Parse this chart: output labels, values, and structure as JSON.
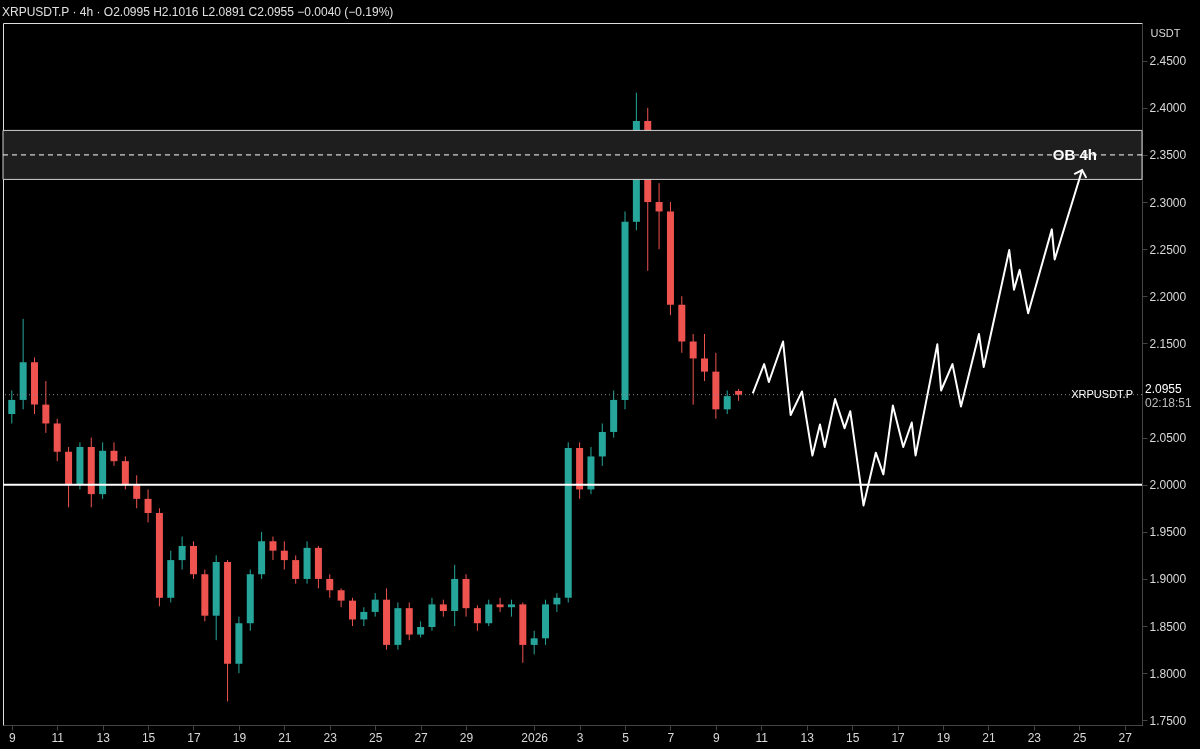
{
  "chart_data": {
    "type": "candlestick",
    "title": "XRPUSDT.P · 4h · O2.0995 H2.1016 L2.0891 C2.0955 −0.0040 (−0.19%)",
    "ylabel": "USDT",
    "x": [
      "2025-12-09T00:00",
      "2025-12-09T12:00",
      "2025-12-10T00:00",
      "2025-12-10T12:00",
      "2025-12-11T00:00",
      "2025-12-11T12:00",
      "2025-12-12T00:00",
      "2025-12-12T12:00",
      "2025-12-13T00:00",
      "2025-12-13T12:00",
      "2025-12-14T00:00",
      "2025-12-14T12:00",
      "2025-12-15T00:00",
      "2025-12-15T12:00",
      "2025-12-16T00:00",
      "2025-12-16T12:00",
      "2025-12-17T00:00",
      "2025-12-17T12:00",
      "2025-12-18T00:00",
      "2025-12-18T12:00",
      "2025-12-19T00:00",
      "2025-12-19T12:00",
      "2025-12-20T00:00",
      "2025-12-20T12:00",
      "2025-12-21T00:00",
      "2025-12-21T12:00",
      "2025-12-22T00:00",
      "2025-12-22T12:00",
      "2025-12-23T00:00",
      "2025-12-23T12:00",
      "2025-12-24T00:00",
      "2025-12-24T12:00",
      "2025-12-25T00:00",
      "2025-12-25T12:00",
      "2025-12-26T00:00",
      "2025-12-26T12:00",
      "2025-12-27T00:00",
      "2025-12-27T12:00",
      "2025-12-28T00:00",
      "2025-12-28T12:00",
      "2025-12-29T00:00",
      "2025-12-29T12:00",
      "2025-12-30T00:00",
      "2025-12-30T12:00",
      "2025-12-31T00:00",
      "2025-12-31T12:00",
      "2026-01-01T00:00",
      "2026-01-01T12:00",
      "2026-01-02T00:00",
      "2026-01-02T12:00",
      "2026-01-03T00:00",
      "2026-01-03T12:00",
      "2026-01-04T00:00",
      "2026-01-04T12:00",
      "2026-01-05T00:00",
      "2026-01-05T12:00",
      "2026-01-06T00:00",
      "2026-01-06T12:00",
      "2026-01-07T00:00",
      "2026-01-07T12:00",
      "2026-01-08T00:00",
      "2026-01-08T12:00",
      "2026-01-09T00:00",
      "2026-01-09T12:00",
      "2026-01-10T00:00"
    ],
    "ohlc": [
      [
        2.075,
        2.1,
        2.065,
        2.09
      ],
      [
        2.09,
        2.176,
        2.08,
        2.13
      ],
      [
        2.13,
        2.135,
        2.075,
        2.085
      ],
      [
        2.085,
        2.11,
        2.055,
        2.065
      ],
      [
        2.065,
        2.07,
        2.025,
        2.035
      ],
      [
        2.035,
        2.04,
        1.976,
        2.0
      ],
      [
        2.0,
        2.045,
        1.995,
        2.04
      ],
      [
        2.04,
        2.05,
        1.976,
        1.99
      ],
      [
        1.99,
        2.045,
        1.985,
        2.036
      ],
      [
        2.036,
        2.045,
        2.02,
        2.025
      ],
      [
        2.025,
        2.03,
        1.995,
        2.0
      ],
      [
        2.0,
        2.01,
        1.975,
        1.985
      ],
      [
        1.985,
        1.995,
        1.96,
        1.97
      ],
      [
        1.97,
        1.975,
        1.871,
        1.88
      ],
      [
        1.88,
        1.93,
        1.875,
        1.92
      ],
      [
        1.92,
        1.945,
        1.91,
        1.935
      ],
      [
        1.935,
        1.94,
        1.9,
        1.905
      ],
      [
        1.905,
        1.91,
        1.855,
        1.861
      ],
      [
        1.861,
        1.925,
        1.835,
        1.918
      ],
      [
        1.918,
        1.92,
        1.77,
        1.81
      ],
      [
        1.81,
        1.86,
        1.8,
        1.853
      ],
      [
        1.853,
        1.91,
        1.845,
        1.905
      ],
      [
        1.905,
        1.95,
        1.9,
        1.94
      ],
      [
        1.94,
        1.945,
        1.92,
        1.93
      ],
      [
        1.93,
        1.94,
        1.91,
        1.92
      ],
      [
        1.92,
        1.925,
        1.895,
        1.9
      ],
      [
        1.9,
        1.94,
        1.895,
        1.933
      ],
      [
        1.933,
        1.935,
        1.89,
        1.9
      ],
      [
        1.9,
        1.905,
        1.88,
        1.888
      ],
      [
        1.888,
        1.89,
        1.87,
        1.877
      ],
      [
        1.877,
        1.88,
        1.85,
        1.857
      ],
      [
        1.857,
        1.87,
        1.85,
        1.865
      ],
      [
        1.865,
        1.885,
        1.86,
        1.878
      ],
      [
        1.878,
        1.89,
        1.825,
        1.83
      ],
      [
        1.83,
        1.875,
        1.825,
        1.869
      ],
      [
        1.869,
        1.875,
        1.835,
        1.841
      ],
      [
        1.841,
        1.855,
        1.838,
        1.849
      ],
      [
        1.849,
        1.88,
        1.845,
        1.873
      ],
      [
        1.873,
        1.878,
        1.86,
        1.866
      ],
      [
        1.866,
        1.915,
        1.85,
        1.9
      ],
      [
        1.9,
        1.905,
        1.86,
        1.869
      ],
      [
        1.869,
        1.872,
        1.845,
        1.853
      ],
      [
        1.853,
        1.878,
        1.85,
        1.873
      ],
      [
        1.873,
        1.88,
        1.865,
        1.87
      ],
      [
        1.87,
        1.878,
        1.86,
        1.873
      ],
      [
        1.873,
        1.875,
        1.811,
        1.83
      ],
      [
        1.83,
        1.845,
        1.82,
        1.837
      ],
      [
        1.837,
        1.878,
        1.83,
        1.873
      ],
      [
        1.873,
        1.885,
        1.865,
        1.88
      ],
      [
        1.88,
        2.045,
        1.875,
        2.039
      ],
      [
        2.039,
        2.045,
        1.985,
        1.995
      ],
      [
        1.995,
        2.04,
        1.99,
        2.03
      ],
      [
        2.03,
        2.065,
        2.02,
        2.056
      ],
      [
        2.056,
        2.1,
        2.05,
        2.09
      ],
      [
        2.09,
        2.29,
        2.08,
        2.279
      ],
      [
        2.279,
        2.416,
        2.27,
        2.386
      ],
      [
        2.386,
        2.4,
        2.227,
        2.3
      ],
      [
        2.3,
        2.32,
        2.25,
        2.29
      ],
      [
        2.29,
        2.3,
        2.18,
        2.191
      ],
      [
        2.191,
        2.2,
        2.14,
        2.152
      ],
      [
        2.152,
        2.16,
        2.085,
        2.134
      ],
      [
        2.134,
        2.16,
        2.11,
        2.12
      ],
      [
        2.12,
        2.14,
        2.07,
        2.08
      ],
      [
        2.08,
        2.1,
        2.075,
        2.094
      ],
      [
        2.0995,
        2.1016,
        2.0891,
        2.0955
      ]
    ],
    "colors": [
      "#26a69a",
      "#26a69a",
      "#ef5350",
      "#ef5350",
      "#ef5350",
      "#ef5350",
      "#26a69a",
      "#ef5350",
      "#26a69a",
      "#ef5350",
      "#ef5350",
      "#ef5350",
      "#ef5350",
      "#ef5350",
      "#26a69a",
      "#26a69a",
      "#ef5350",
      "#ef5350",
      "#26a69a",
      "#ef5350",
      "#26a69a",
      "#26a69a",
      "#26a69a",
      "#ef5350",
      "#ef5350",
      "#ef5350",
      "#26a69a",
      "#ef5350",
      "#ef5350",
      "#ef5350",
      "#ef5350",
      "#26a69a",
      "#26a69a",
      "#ef5350",
      "#26a69a",
      "#ef5350",
      "#26a69a",
      "#26a69a",
      "#ef5350",
      "#26a69a",
      "#ef5350",
      "#ef5350",
      "#26a69a",
      "#ef5350",
      "#26a69a",
      "#ef5350",
      "#26a69a",
      "#26a69a",
      "#26a69a",
      "#26a69a",
      "#ef5350",
      "#26a69a",
      "#26a69a",
      "#26a69a",
      "#26a69a",
      "#26a69a",
      "#ef5350",
      "#ef5350",
      "#ef5350",
      "#ef5350",
      "#ef5350",
      "#ef5350",
      "#ef5350",
      "#26a69a",
      "#ef5350"
    ],
    "series": [
      {
        "type": "line",
        "color": "#ffffff",
        "x": [
          "2026-01-10T15:00",
          "2026-01-11T03:00",
          "2026-01-11T08:00",
          "2026-01-11T23:00",
          "2026-01-12T07:00",
          "2026-01-12T19:00",
          "2026-01-13T06:00",
          "2026-01-13T14:00",
          "2026-01-13T19:00",
          "2026-01-14T06:00",
          "2026-01-14T16:00",
          "2026-01-14T22:00",
          "2026-01-15T12:00",
          "2026-01-16T01:00",
          "2026-01-16T09:00",
          "2026-01-16T19:00",
          "2026-01-17T06:00",
          "2026-01-17T15:00",
          "2026-01-17T19:00",
          "2026-01-18T18:00",
          "2026-01-18T22:00",
          "2026-01-19T10:00",
          "2026-01-19T19:00",
          "2026-01-20T14:00",
          "2026-01-20T19:00",
          "2026-01-21T22:00",
          "2026-01-22T03:00",
          "2026-01-22T09:00",
          "2026-01-22T18:00",
          "2026-01-23T19:00",
          "2026-01-23T22:00",
          "2026-01-25T03:00"
        ],
        "values": [
          2.097,
          2.128,
          2.109,
          2.152,
          2.074,
          2.099,
          2.031,
          2.064,
          2.04,
          2.091,
          2.06,
          2.078,
          1.978,
          2.034,
          2.011,
          2.084,
          2.04,
          2.066,
          2.031,
          2.149,
          2.1,
          2.128,
          2.083,
          2.16,
          2.125,
          2.249,
          2.207,
          2.228,
          2.182,
          2.271,
          2.239,
          2.334
        ]
      }
    ],
    "xlim": [
      "2025-12-08T20:00",
      "2026-01-27T13:00"
    ],
    "xticks": [
      {
        "value": "2025-12-09",
        "label": "9"
      },
      {
        "value": "2025-12-11",
        "label": "11"
      },
      {
        "value": "2025-12-13",
        "label": "13"
      },
      {
        "value": "2025-12-15",
        "label": "15"
      },
      {
        "value": "2025-12-17",
        "label": "17"
      },
      {
        "value": "2025-12-19",
        "label": "19"
      },
      {
        "value": "2025-12-21",
        "label": "21"
      },
      {
        "value": "2025-12-23",
        "label": "23"
      },
      {
        "value": "2025-12-25",
        "label": "25"
      },
      {
        "value": "2025-12-27",
        "label": "27"
      },
      {
        "value": "2025-12-29",
        "label": "29"
      },
      {
        "value": "2026-01-01",
        "label": "2026"
      },
      {
        "value": "2026-01-03",
        "label": "3"
      },
      {
        "value": "2026-01-05",
        "label": "5"
      },
      {
        "value": "2026-01-07",
        "label": "7"
      },
      {
        "value": "2026-01-09",
        "label": "9"
      },
      {
        "value": "2026-01-11",
        "label": "11"
      },
      {
        "value": "2026-01-13",
        "label": "13"
      },
      {
        "value": "2026-01-15",
        "label": "15"
      },
      {
        "value": "2026-01-17",
        "label": "17"
      },
      {
        "value": "2026-01-19",
        "label": "19"
      },
      {
        "value": "2026-01-21",
        "label": "21"
      },
      {
        "value": "2026-01-23",
        "label": "23"
      },
      {
        "value": "2026-01-25",
        "label": "25"
      },
      {
        "value": "2026-01-27",
        "label": "27"
      }
    ],
    "ylim": [
      1.745,
      2.49
    ],
    "yticks": [
      {
        "value": 1.75,
        "label": "1.7500"
      },
      {
        "value": 1.8,
        "label": "1.8000"
      },
      {
        "value": 1.85,
        "label": "1.8500"
      },
      {
        "value": 1.9,
        "label": "1.9000"
      },
      {
        "value": 1.95,
        "label": "1.9500"
      },
      {
        "value": 2.0,
        "label": "2.0000"
      },
      {
        "value": 2.05,
        "label": "2.0500"
      },
      {
        "value": 2.15,
        "label": "2.1500"
      },
      {
        "value": 2.2,
        "label": "2.2000"
      },
      {
        "value": 2.25,
        "label": "2.2500"
      },
      {
        "value": 2.3,
        "label": "2.3000"
      },
      {
        "value": 2.35,
        "label": "2.3500"
      },
      {
        "value": 2.4,
        "label": "2.4000"
      },
      {
        "value": 2.45,
        "label": "2.4500"
      }
    ],
    "bands": [
      {
        "axis": "y",
        "from": 2.324,
        "to": 2.376,
        "label": "OB 4h",
        "color": "#1e1e1e"
      }
    ],
    "ref_lines": [
      {
        "axis": "y",
        "value": 2.35,
        "color": "#ffffff",
        "line_style": "dashed"
      },
      {
        "axis": "y",
        "value": 2.0,
        "color": "#ffffff",
        "line_style": "solid"
      },
      {
        "axis": "y",
        "value": 2.0955,
        "label": "XRPUSDT.P",
        "color": "#8a8a8a",
        "line_style": "dotted"
      }
    ],
    "annotations": [
      "2.0955",
      "02:18:51"
    ]
  }
}
